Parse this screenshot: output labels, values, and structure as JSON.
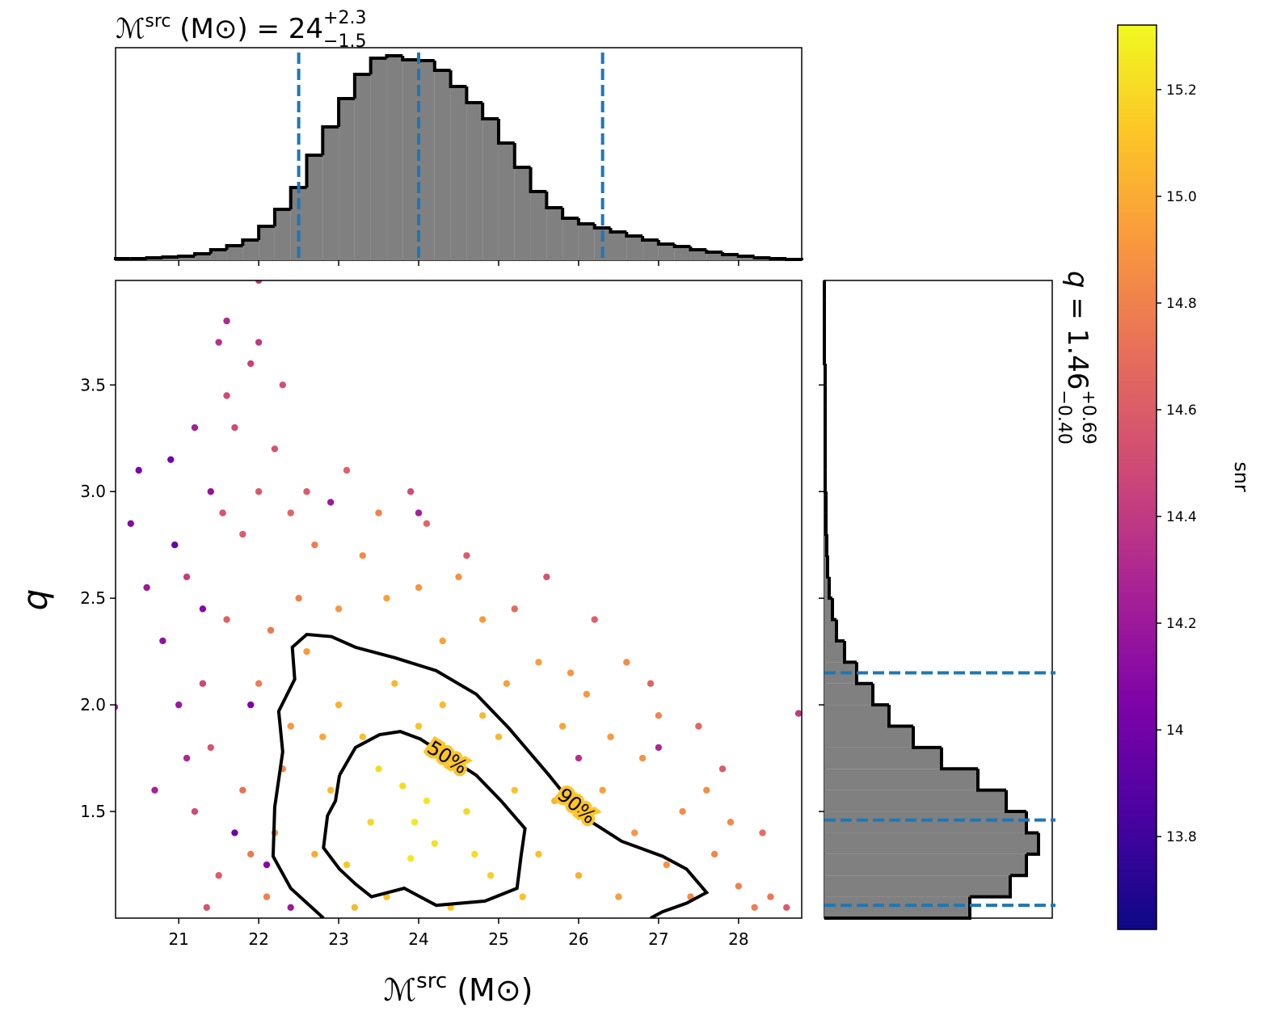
{
  "chart_data": [
    {
      "type": "scatter",
      "xlabel": {
        "symbol": "ℳ",
        "sup": "src",
        "unit": " (M⊙)"
      },
      "ylabel": "q",
      "xlim": [
        20.21,
        28.79
      ],
      "ylim": [
        1.0,
        3.99
      ],
      "xticks": [
        21,
        22,
        23,
        24,
        25,
        26,
        27,
        28
      ],
      "yticks": [
        1.5,
        {
          "value": 2,
          "label": "2.0"
        },
        2.5,
        {
          "value": 3,
          "label": "3.0"
        },
        3.5
      ],
      "cmap": "plasma",
      "points": [
        [
          20.4,
          2.85,
          14.1
        ],
        [
          20.6,
          2.55,
          14.2
        ],
        [
          20.8,
          2.3,
          14.15
        ],
        [
          20.9,
          3.15,
          14.0
        ],
        [
          21.0,
          2.0,
          14.2
        ],
        [
          21.1,
          1.75,
          14.3
        ],
        [
          20.7,
          1.6,
          14.25
        ],
        [
          21.2,
          3.3,
          14.25
        ],
        [
          21.5,
          3.7,
          14.35
        ],
        [
          21.6,
          3.8,
          14.3
        ],
        [
          20.5,
          3.1,
          14.05
        ],
        [
          20.95,
          2.75,
          13.95
        ],
        [
          21.3,
          2.45,
          14.1
        ],
        [
          21.4,
          3.0,
          14.15
        ],
        [
          22.9,
          2.95,
          14.2
        ],
        [
          24.0,
          2.9,
          14.25
        ],
        [
          27.0,
          1.8,
          14.3
        ],
        [
          26.0,
          1.75,
          14.35
        ],
        [
          22.0,
          3.99,
          14.4
        ],
        [
          20.2,
          1.99,
          14.3
        ],
        [
          28.75,
          1.96,
          14.4
        ],
        [
          21.7,
          1.4,
          14.0
        ],
        [
          22.1,
          1.25,
          14.1
        ],
        [
          22.4,
          1.05,
          14.2
        ],
        [
          21.9,
          2.0,
          14.05
        ],
        [
          21.5,
          1.2,
          14.6
        ],
        [
          21.4,
          1.8,
          14.55
        ],
        [
          21.6,
          2.4,
          14.62
        ],
        [
          21.8,
          2.8,
          14.6
        ],
        [
          22.0,
          3.0,
          14.58
        ],
        [
          22.2,
          3.2,
          14.55
        ],
        [
          22.4,
          2.9,
          14.65
        ],
        [
          21.7,
          3.3,
          14.5
        ],
        [
          21.9,
          3.6,
          14.45
        ],
        [
          22.0,
          3.7,
          14.4
        ],
        [
          21.2,
          1.5,
          14.5
        ],
        [
          21.3,
          2.1,
          14.48
        ],
        [
          21.1,
          2.6,
          14.42
        ],
        [
          22.6,
          3.0,
          14.6
        ],
        [
          23.1,
          3.1,
          14.62
        ],
        [
          24.1,
          2.85,
          14.65
        ],
        [
          24.6,
          2.7,
          14.6
        ],
        [
          25.2,
          2.45,
          14.68
        ],
        [
          26.2,
          2.4,
          14.62
        ],
        [
          26.9,
          2.1,
          14.64
        ],
        [
          27.5,
          1.9,
          14.66
        ],
        [
          28.3,
          1.4,
          14.7
        ],
        [
          28.6,
          1.05,
          14.6
        ],
        [
          21.35,
          1.05,
          14.55
        ],
        [
          21.6,
          3.45,
          14.5
        ],
        [
          22.3,
          3.5,
          14.52
        ],
        [
          21.55,
          2.9,
          14.55
        ],
        [
          23.9,
          3.0,
          14.5
        ],
        [
          25.6,
          2.6,
          14.55
        ],
        [
          27.8,
          1.7,
          14.6
        ],
        [
          22.2,
          1.4,
          14.85
        ],
        [
          22.4,
          1.9,
          14.9
        ],
        [
          22.6,
          2.25,
          14.92
        ],
        [
          23.0,
          2.45,
          14.9
        ],
        [
          23.6,
          2.5,
          14.95
        ],
        [
          24.3,
          2.3,
          14.96
        ],
        [
          25.1,
          2.1,
          14.95
        ],
        [
          25.8,
          1.9,
          14.97
        ],
        [
          26.3,
          1.6,
          14.95
        ],
        [
          26.7,
          1.4,
          14.9
        ],
        [
          27.1,
          1.25,
          14.88
        ],
        [
          27.4,
          1.1,
          14.85
        ],
        [
          26.5,
          1.1,
          14.93
        ],
        [
          22.1,
          1.1,
          14.8
        ],
        [
          22.3,
          1.7,
          14.82
        ],
        [
          21.9,
          1.3,
          14.75
        ],
        [
          22.0,
          2.1,
          14.78
        ],
        [
          22.5,
          2.5,
          14.8
        ],
        [
          23.3,
          2.7,
          14.85
        ],
        [
          24.0,
          2.55,
          14.9
        ],
        [
          24.8,
          2.4,
          14.92
        ],
        [
          25.5,
          2.2,
          14.94
        ],
        [
          26.1,
          2.05,
          14.9
        ],
        [
          26.8,
          1.75,
          14.88
        ],
        [
          27.3,
          1.5,
          14.86
        ],
        [
          27.7,
          1.3,
          14.82
        ],
        [
          28.0,
          1.15,
          14.8
        ],
        [
          27.9,
          1.45,
          14.84
        ],
        [
          27.6,
          1.6,
          14.86
        ],
        [
          26.4,
          1.85,
          14.92
        ],
        [
          21.8,
          1.6,
          14.72
        ],
        [
          22.15,
          2.35,
          14.76
        ],
        [
          22.7,
          2.75,
          14.78
        ],
        [
          23.5,
          2.9,
          14.8
        ],
        [
          24.5,
          2.6,
          14.88
        ],
        [
          25.9,
          2.15,
          14.9
        ],
        [
          28.2,
          1.05,
          14.78
        ],
        [
          28.4,
          1.1,
          14.75
        ],
        [
          27.0,
          1.95,
          14.82
        ],
        [
          26.6,
          2.2,
          14.85
        ],
        [
          23.1,
          1.25,
          15.12
        ],
        [
          23.4,
          1.45,
          15.18
        ],
        [
          23.8,
          1.62,
          15.2
        ],
        [
          24.2,
          1.35,
          15.22
        ],
        [
          24.6,
          1.5,
          15.19
        ],
        [
          24.9,
          1.2,
          15.15
        ],
        [
          23.6,
          1.1,
          15.1
        ],
        [
          22.9,
          1.6,
          15.05
        ],
        [
          23.3,
          1.85,
          15.08
        ],
        [
          24.0,
          1.9,
          15.1
        ],
        [
          24.5,
          1.75,
          15.14
        ],
        [
          25.2,
          1.6,
          15.1
        ],
        [
          25.5,
          1.3,
          15.08
        ],
        [
          23.9,
          1.28,
          15.25
        ],
        [
          24.4,
          1.05,
          15.12
        ],
        [
          22.7,
          1.3,
          15.0
        ],
        [
          23.0,
          2.0,
          15.02
        ],
        [
          23.7,
          2.1,
          15.05
        ],
        [
          24.3,
          2.0,
          15.07
        ],
        [
          25.0,
          1.85,
          15.06
        ],
        [
          25.7,
          1.55,
          15.03
        ],
        [
          26.0,
          1.2,
          15.02
        ],
        [
          23.5,
          1.7,
          15.2
        ],
        [
          24.1,
          1.55,
          15.24
        ],
        [
          24.7,
          1.3,
          15.2
        ],
        [
          23.2,
          1.05,
          15.05
        ],
        [
          25.3,
          1.1,
          15.1
        ],
        [
          22.8,
          1.85,
          14.98
        ],
        [
          24.8,
          1.95,
          15.05
        ],
        [
          23.95,
          1.45,
          15.26
        ]
      ],
      "contours": [
        {
          "label": "50%",
          "x": [
            23.01,
            23.21,
            23.51,
            23.77,
            24.02,
            24.72,
            25.03,
            25.33,
            25.28,
            25.23,
            24.83,
            24.22,
            23.82,
            23.41,
            23.21,
            23.01,
            22.81,
            22.86,
            22.96,
            23.01
          ],
          "y": [
            1.67,
            1.8,
            1.86,
            1.875,
            1.84,
            1.67,
            1.55,
            1.42,
            1.29,
            1.14,
            1.08,
            1.06,
            1.14,
            1.1,
            1.16,
            1.23,
            1.33,
            1.48,
            1.55,
            1.67
          ]
        },
        {
          "label": "90%",
          "x": [
            22.81,
            22.4,
            22.18,
            22.2,
            22.3,
            22.25,
            22.45,
            22.42,
            22.6,
            22.91,
            23.21,
            23.71,
            24.22,
            24.72,
            25.13,
            25.63,
            26.04,
            26.54,
            27.05,
            27.35,
            27.6,
            27.35,
            27.05,
            26.9
          ],
          "y": [
            1.0,
            1.14,
            1.29,
            1.52,
            1.78,
            1.97,
            2.12,
            2.27,
            2.33,
            2.32,
            2.27,
            2.22,
            2.16,
            2.05,
            1.89,
            1.67,
            1.48,
            1.36,
            1.29,
            1.23,
            1.12,
            1.07,
            1.03,
            1.0
          ]
        }
      ],
      "colorbar": {
        "label": "snr",
        "clim": [
          13.626,
          15.321
        ],
        "ticks": [
          13.8,
          14.0,
          14.2,
          14.4,
          14.6,
          14.8,
          {
            "value": 15,
            "label": "15.0"
          },
          15.2
        ]
      }
    },
    {
      "type": "histogram",
      "title": {
        "symbol": "ℳ",
        "sup": "src",
        "unit": " (M⊙) = 24",
        "plus": "+2.3",
        "minus": "−1.5"
      },
      "color": "#808080",
      "bins": [
        20.2,
        20.4,
        20.6,
        20.8,
        21.0,
        21.2,
        21.4,
        21.6,
        21.8,
        22.0,
        22.2,
        22.4,
        22.6,
        22.8,
        23.0,
        23.2,
        23.4,
        23.6,
        23.8,
        24.0,
        24.2,
        24.4,
        24.6,
        24.8,
        25.0,
        25.2,
        25.4,
        25.6,
        25.8,
        26.0,
        26.2,
        26.4,
        26.6,
        26.8,
        27.0,
        27.2,
        27.4,
        27.6,
        27.8,
        28.0,
        28.2,
        28.4,
        28.6,
        28.8
      ],
      "counts": [
        2,
        2,
        3,
        4,
        5,
        8,
        13,
        18,
        25,
        42,
        63,
        90,
        130,
        165,
        200,
        230,
        250,
        253,
        248,
        247,
        235,
        215,
        195,
        175,
        145,
        115,
        85,
        65,
        52,
        45,
        40,
        35,
        30,
        25,
        20,
        17,
        13,
        10,
        7,
        5,
        3,
        2,
        1
      ],
      "xlim": [
        20.21,
        28.79
      ],
      "ylim": [
        0,
        263
      ],
      "xticks": [
        21,
        22,
        23,
        24,
        25,
        26,
        27,
        28
      ],
      "quantiles": [
        22.5,
        24.0,
        26.3
      ],
      "quantile_color": "#1f77b4"
    },
    {
      "type": "histogram",
      "orientation": "horizontal",
      "title": {
        "symbol": "q",
        "eq": " = 1.46",
        "plus": "+0.69",
        "minus": "−0.40"
      },
      "color": "#808080",
      "bins": [
        1.0,
        1.1,
        1.2,
        1.3,
        1.4,
        1.5,
        1.6,
        1.7,
        1.8,
        1.9,
        2.0,
        2.1,
        2.2,
        2.3,
        2.4,
        2.5,
        2.6,
        2.7,
        2.8,
        2.9,
        3.0,
        3.1,
        3.2,
        3.3,
        3.4,
        3.5,
        3.6,
        3.7,
        3.8,
        3.9,
        4.0
      ],
      "counts": [
        180,
        230,
        250,
        265,
        250,
        225,
        190,
        145,
        110,
        80,
        60,
        40,
        25,
        15,
        10,
        6,
        4,
        3,
        2,
        2,
        1,
        1,
        1,
        1,
        1,
        1,
        0,
        0,
        0,
        0
      ],
      "xlim": [
        0,
        282
      ],
      "ylim": [
        1.0,
        3.99
      ],
      "yticks": [
        1.5,
        2,
        2.5,
        3,
        3.5
      ],
      "quantiles": [
        1.06,
        1.46,
        2.15
      ],
      "quantile_color": "#1f77b4"
    }
  ]
}
